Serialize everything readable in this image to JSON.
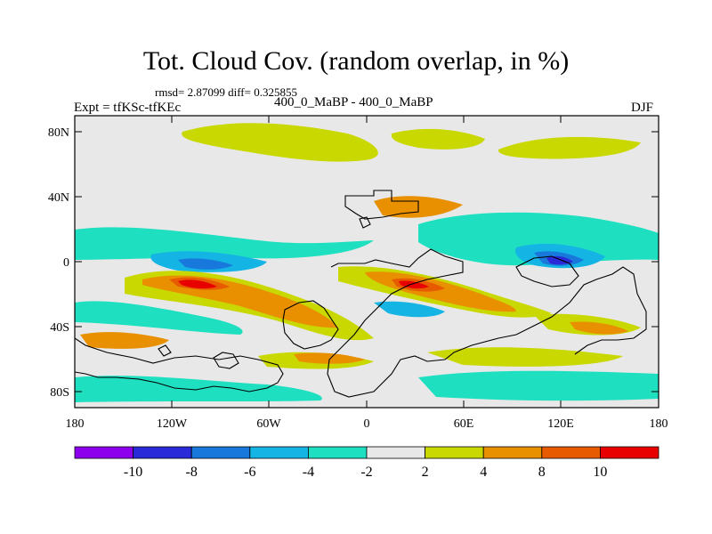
{
  "title": "Tot. Cloud Cov. (random overlap, in %)",
  "stats": "rmsd= 2.87099 diff= 0.325855",
  "experiment_label": "Expt = tfKSc-tfKEc",
  "case_label": "400_0_MaBP - 400_0_MaBP",
  "season": "DJF",
  "lat_ticks": [
    "80N",
    "40N",
    "0",
    "40S",
    "80S"
  ],
  "lon_ticks": [
    "180",
    "120W",
    "60W",
    "0",
    "60E",
    "120E",
    "180"
  ],
  "colorbar": {
    "colors": [
      "#8c00ee",
      "#2a2ad8",
      "#1878dc",
      "#14b4e4",
      "#1ee0c0",
      "#e8e8e8",
      "#c8d800",
      "#e89000",
      "#e85a00",
      "#e80000"
    ],
    "labels": [
      "-10",
      "-8",
      "-6",
      "-4",
      "-2",
      "2",
      "4",
      "8",
      "10"
    ]
  },
  "colors": {
    "background_field": "#e8e8e8",
    "coastline": "#000000"
  }
}
